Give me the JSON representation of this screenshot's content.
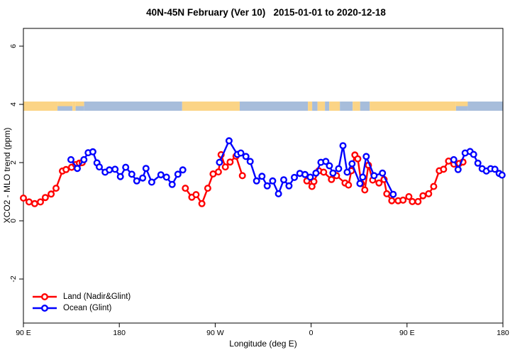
{
  "chart_data": {
    "type": "scatter-line",
    "title": "40N-45N February (Ver 10)   2015-01-01 to 2020-12-18",
    "xlabel": "Longitude (deg E)",
    "ylabel": "XCO2 - MLO trend (ppm)",
    "xlim_deg_east": [
      90,
      540
    ],
    "ylim": [
      -3.5,
      6.6
    ],
    "grid": false,
    "legend_position": "bottom-left",
    "x_ticks": [
      {
        "lon": 90,
        "label": "90 E"
      },
      {
        "lon": 180,
        "label": "180"
      },
      {
        "lon": 270,
        "label": "90 W"
      },
      {
        "lon": 360,
        "label": "0"
      },
      {
        "lon": 450,
        "label": "90 E"
      },
      {
        "lon": 540,
        "label": "180"
      }
    ],
    "y_ticks": [
      -2,
      0,
      2,
      4,
      6
    ],
    "map_strip": {
      "y_value": 4,
      "land_color": "#fbd486",
      "ocean_color": "#a7bddb",
      "segments": [
        [
          90,
          122,
          "land"
        ],
        [
          122,
          136,
          "mixed"
        ],
        [
          136,
          139,
          "land"
        ],
        [
          139,
          147,
          "mixed"
        ],
        [
          147,
          239,
          "ocean"
        ],
        [
          239,
          293,
          "land"
        ],
        [
          293,
          357,
          "ocean"
        ],
        [
          357,
          361,
          "land"
        ],
        [
          361,
          366,
          "ocean"
        ],
        [
          366,
          373,
          "land"
        ],
        [
          373,
          377,
          "ocean"
        ],
        [
          377,
          387,
          "land"
        ],
        [
          387,
          399,
          "ocean"
        ],
        [
          399,
          406,
          "land"
        ],
        [
          406,
          415,
          "ocean"
        ],
        [
          415,
          496,
          "land"
        ],
        [
          496,
          507,
          "mixed"
        ],
        [
          507,
          540,
          "ocean"
        ]
      ]
    },
    "series": [
      {
        "name": "Land (Nadir&Glint)",
        "color": "#ff0000",
        "marker": "open-circle",
        "runs": [
          [
            [
              90,
              0.78
            ],
            [
              95.3,
              0.65
            ],
            [
              100.6,
              0.59
            ],
            [
              106,
              0.65
            ],
            [
              110.6,
              0.8
            ],
            [
              116,
              0.92
            ],
            [
              120.6,
              1.12
            ],
            [
              126.6,
              1.71
            ],
            [
              130,
              1.76
            ],
            [
              135.2,
              1.84
            ],
            [
              139,
              1.93
            ],
            [
              142.5,
              1.98
            ],
            [
              145.2,
              2.0
            ]
          ],
          [
            [
              242,
              1.12
            ],
            [
              248,
              0.81
            ],
            [
              252,
              0.9
            ],
            [
              257.5,
              0.59
            ],
            [
              263,
              1.12
            ],
            [
              268,
              1.61
            ],
            [
              273,
              1.68
            ],
            [
              275.5,
              2.27
            ],
            [
              279.5,
              1.85
            ],
            [
              284,
              2.02
            ],
            [
              289.5,
              2.22
            ],
            [
              295.5,
              1.55
            ]
          ],
          [
            [
              356,
              1.37
            ],
            [
              360.8,
              1.18
            ],
            [
              362.6,
              1.35
            ],
            [
              367.2,
              1.72
            ],
            [
              371.8,
              1.67
            ],
            [
              379.1,
              1.42
            ],
            [
              383.8,
              1.55
            ],
            [
              391.8,
              1.3
            ],
            [
              395.1,
              1.23
            ],
            [
              397.8,
              1.72
            ],
            [
              401.1,
              2.26
            ],
            [
              403.8,
              2.13
            ],
            [
              407.1,
              1.28
            ],
            [
              410.4,
              1.06
            ],
            [
              413.8,
              1.91
            ],
            [
              417.8,
              1.4
            ],
            [
              423.7,
              1.3
            ],
            [
              428.4,
              1.42
            ],
            [
              431,
              0.93
            ],
            [
              435.7,
              0.69
            ],
            [
              441.7,
              0.69
            ],
            [
              446.3,
              0.71
            ],
            [
              451.7,
              0.83
            ],
            [
              455,
              0.66
            ],
            [
              460.3,
              0.66
            ],
            [
              465,
              0.86
            ],
            [
              470.3,
              0.93
            ],
            [
              475,
              1.18
            ],
            [
              480.3,
              1.72
            ],
            [
              484.3,
              1.77
            ],
            [
              489,
              2.05
            ],
            [
              494,
              1.95
            ],
            [
              499,
              1.97
            ],
            [
              502.5,
              2.02
            ]
          ]
        ]
      },
      {
        "name": "Ocean (Glint)",
        "color": "#0000ff",
        "marker": "open-circle",
        "runs": [
          [
            [
              134.6,
              2.1
            ],
            [
              140.6,
              1.8
            ],
            [
              146.8,
              2.1
            ],
            [
              150.8,
              2.34
            ],
            [
              155.2,
              2.37
            ],
            [
              159,
              1.99
            ],
            [
              161.2,
              1.85
            ],
            [
              166.7,
              1.67
            ],
            [
              170.7,
              1.75
            ],
            [
              176,
              1.77
            ],
            [
              181,
              1.52
            ],
            [
              186,
              1.84
            ],
            [
              191.7,
              1.6
            ],
            [
              196.4,
              1.37
            ],
            [
              202,
              1.47
            ],
            [
              205,
              1.8
            ],
            [
              210.4,
              1.33
            ],
            [
              219,
              1.58
            ],
            [
              224.3,
              1.5
            ],
            [
              229.6,
              1.25
            ],
            [
              235,
              1.6
            ],
            [
              239.6,
              1.75
            ]
          ],
          [
            [
              274,
              2.01
            ],
            [
              283,
              2.75
            ],
            [
              290.8,
              2.28
            ],
            [
              294,
              2.33
            ],
            [
              298.8,
              2.21
            ],
            [
              302.8,
              2.04
            ],
            [
              308.8,
              1.37
            ],
            [
              313.9,
              1.53
            ],
            [
              318.8,
              1.2
            ],
            [
              323.9,
              1.37
            ],
            [
              329.4,
              0.93
            ],
            [
              334.3,
              1.41
            ],
            [
              339.2,
              1.2
            ],
            [
              344.3,
              1.49
            ],
            [
              349.4,
              1.63
            ],
            [
              354.3,
              1.59
            ],
            [
              359.2,
              1.5
            ],
            [
              364.5,
              1.64
            ],
            [
              369.2,
              2.01
            ],
            [
              373.8,
              2.04
            ],
            [
              377.2,
              1.89
            ],
            [
              380.5,
              1.64
            ],
            [
              385.8,
              1.79
            ],
            [
              389.9,
              2.58
            ],
            [
              393.8,
              1.67
            ],
            [
              398.4,
              1.96
            ],
            [
              405.8,
              1.28
            ],
            [
              408.4,
              1.5
            ],
            [
              411.7,
              2.21
            ],
            [
              419.1,
              1.55
            ],
            [
              427,
              1.64
            ],
            [
              437,
              0.91
            ]
          ],
          [
            [
              493.9,
              2.1
            ],
            [
              497.9,
              1.76
            ],
            [
              504.5,
              2.33
            ],
            [
              509.2,
              2.38
            ],
            [
              512.5,
              2.28
            ],
            [
              516.5,
              1.98
            ],
            [
              520.5,
              1.79
            ],
            [
              524.5,
              1.71
            ],
            [
              528.5,
              1.79
            ],
            [
              532.5,
              1.77
            ],
            [
              536.5,
              1.63
            ],
            [
              539.2,
              1.57
            ]
          ]
        ]
      }
    ]
  },
  "legend": [
    {
      "label": "Land (Nadir&Glint)",
      "color": "#ff0000"
    },
    {
      "label": "Ocean (Glint)",
      "color": "#0000ff"
    }
  ]
}
